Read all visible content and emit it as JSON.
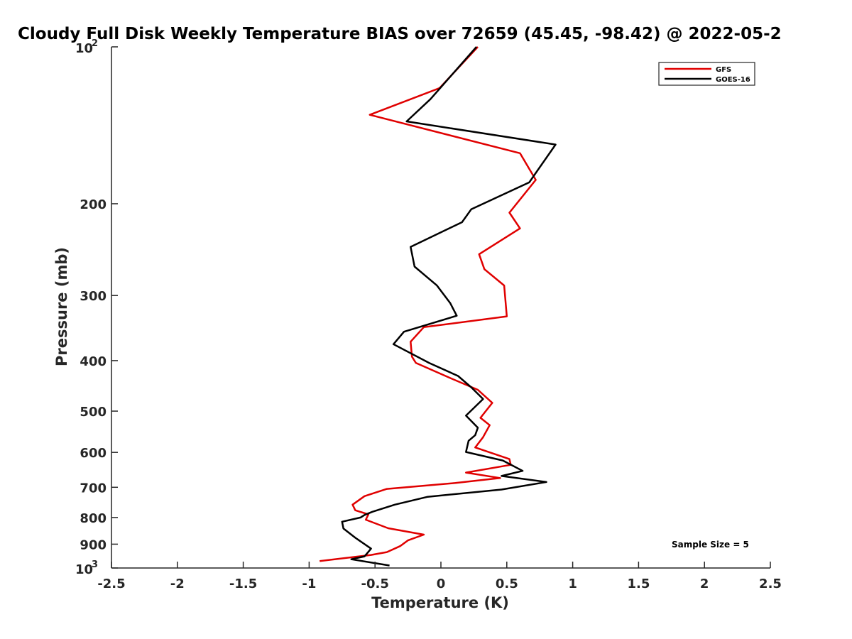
{
  "chart_data": {
    "type": "line",
    "title": "Cloudy Full Disk Weekly Temperature BIAS over 72659 (45.45, -98.42) @ 2022-05-2",
    "xlabel": "Temperature (K)",
    "ylabel": "Pressure (mb)",
    "xlim": [
      -2.5,
      2.5
    ],
    "ylim": [
      100,
      1000
    ],
    "y_scale": "log",
    "y_reversed": true,
    "grid": false,
    "legend_position": "top-right",
    "x_ticks": [
      "-2.5",
      "-2",
      "-1.5",
      "-1",
      "-0.5",
      "0",
      "0.5",
      "1",
      "1.5",
      "2",
      "2.5"
    ],
    "y_ticks": [
      {
        "value": 100,
        "base": "10",
        "exp": "2"
      },
      {
        "value": 200,
        "label": "200"
      },
      {
        "value": 300,
        "label": "300"
      },
      {
        "value": 400,
        "label": "400"
      },
      {
        "value": 500,
        "label": "500"
      },
      {
        "value": 600,
        "label": "600"
      },
      {
        "value": 700,
        "label": "700"
      },
      {
        "value": 800,
        "label": "800"
      },
      {
        "value": 900,
        "label": "900"
      },
      {
        "value": 1000,
        "base": "10",
        "exp": "3"
      }
    ],
    "annotation": "Sample Size = 5",
    "series": [
      {
        "name": "GFS",
        "color": "#e00000",
        "points": [
          [
            0.28,
            100
          ],
          [
            -0.01,
            120
          ],
          [
            -0.54,
            135
          ],
          [
            0.6,
            160
          ],
          [
            0.72,
            180
          ],
          [
            0.52,
            208
          ],
          [
            0.6,
            223
          ],
          [
            0.29,
            250
          ],
          [
            0.33,
            267
          ],
          [
            0.48,
            287
          ],
          [
            0.5,
            329
          ],
          [
            -0.13,
            345
          ],
          [
            -0.23,
            368
          ],
          [
            -0.22,
            393
          ],
          [
            -0.19,
            404
          ],
          [
            0.07,
            432
          ],
          [
            0.28,
            455
          ],
          [
            0.39,
            482
          ],
          [
            0.3,
            515
          ],
          [
            0.37,
            532
          ],
          [
            0.32,
            561
          ],
          [
            0.26,
            587
          ],
          [
            0.52,
            618
          ],
          [
            0.53,
            634
          ],
          [
            0.19,
            656
          ],
          [
            0.45,
            672
          ],
          [
            0.11,
            687
          ],
          [
            -0.41,
            705
          ],
          [
            -0.58,
            728
          ],
          [
            -0.67,
            756
          ],
          [
            -0.65,
            775
          ],
          [
            -0.55,
            789
          ],
          [
            -0.57,
            808
          ],
          [
            -0.4,
            839
          ],
          [
            -0.13,
            863
          ],
          [
            -0.25,
            885
          ],
          [
            -0.31,
            908
          ],
          [
            -0.41,
            932
          ],
          [
            -0.53,
            944
          ],
          [
            -0.92,
            970
          ]
        ]
      },
      {
        "name": "GOES-16",
        "color": "#000000",
        "points": [
          [
            0.27,
            100
          ],
          [
            -0.08,
            126
          ],
          [
            -0.26,
            139
          ],
          [
            0.87,
            154
          ],
          [
            0.67,
            182
          ],
          [
            0.23,
            205
          ],
          [
            0.16,
            217
          ],
          [
            -0.23,
            242
          ],
          [
            -0.2,
            264
          ],
          [
            -0.03,
            287
          ],
          [
            0.07,
            310
          ],
          [
            0.12,
            328
          ],
          [
            -0.28,
            352
          ],
          [
            -0.36,
            372
          ],
          [
            -0.09,
            404
          ],
          [
            0.13,
            428
          ],
          [
            0.23,
            450
          ],
          [
            0.32,
            474
          ],
          [
            0.19,
            510
          ],
          [
            0.28,
            538
          ],
          [
            0.26,
            556
          ],
          [
            0.21,
            570
          ],
          [
            0.19,
            599
          ],
          [
            0.47,
            622
          ],
          [
            0.62,
            651
          ],
          [
            0.46,
            666
          ],
          [
            0.8,
            684
          ],
          [
            0.46,
            707
          ],
          [
            -0.1,
            730
          ],
          [
            -0.35,
            756
          ],
          [
            -0.52,
            780
          ],
          [
            -0.58,
            791
          ],
          [
            -0.61,
            800
          ],
          [
            -0.75,
            815
          ],
          [
            -0.74,
            840
          ],
          [
            -0.65,
            875
          ],
          [
            -0.53,
            918
          ],
          [
            -0.56,
            937
          ],
          [
            -0.58,
            950
          ],
          [
            -0.68,
            962
          ],
          [
            -0.39,
            989
          ]
        ]
      }
    ]
  }
}
